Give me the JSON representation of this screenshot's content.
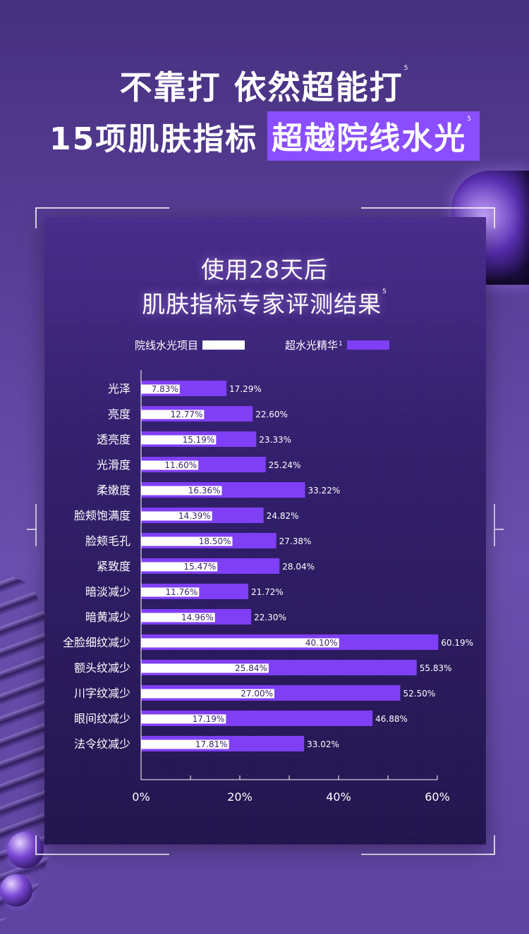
{
  "header": {
    "line1": "不靠打 依然超能打",
    "line1_note": "5",
    "line2_prefix": "15项肌肤指标",
    "line2_highlight": "超越院线水光",
    "line2_note": "5"
  },
  "chart_data": {
    "type": "bar",
    "orientation": "horizontal",
    "title_line1": "使用28天后",
    "title_line2": "肌肤指标专家评测结果",
    "title_note": "5",
    "legend_position": "top",
    "xlim": [
      0,
      60
    ],
    "x_ticks": [
      "0%",
      "20%",
      "40%",
      "60%"
    ],
    "categories": [
      "光泽",
      "亮度",
      "透亮度",
      "光滑度",
      "柔嫩度",
      "脸颊饱满度",
      "脸颊毛孔",
      "紧致度",
      "暗淡减少",
      "暗黄减少",
      "全脸细纹减少",
      "额头纹减少",
      "川字纹减少",
      "眼间纹减少",
      "法令纹减少"
    ],
    "series": [
      {
        "name": "院线水光项目",
        "color": "#ffffff",
        "values": [
          7.83,
          12.77,
          15.19,
          11.6,
          16.36,
          14.39,
          18.5,
          15.47,
          11.76,
          14.96,
          40.1,
          25.84,
          27.0,
          17.19,
          17.81
        ],
        "labels": [
          "7.83%",
          "12.77%",
          "15.19%",
          "11.60%",
          "16.36%",
          "14.39%",
          "18.50%",
          "15.47%",
          "11.76%",
          "14.96%",
          "40.10%",
          "25.84%",
          "27.00%",
          "17.19%",
          "17.81%"
        ]
      },
      {
        "name": "超水光精华",
        "name_note": "1",
        "color": "#7f3ff5",
        "values": [
          17.29,
          22.6,
          23.33,
          25.24,
          33.22,
          24.82,
          27.38,
          28.04,
          21.72,
          22.3,
          60.19,
          55.83,
          52.5,
          46.88,
          33.02
        ],
        "labels": [
          "17.29%",
          "22.60%",
          "23.33%",
          "25.24%",
          "33.22%",
          "24.82%",
          "27.38%",
          "28.04%",
          "21.72%",
          "22.30%",
          "60.19%",
          "55.83%",
          "52.50%",
          "46.88%",
          "33.02%"
        ]
      }
    ]
  }
}
